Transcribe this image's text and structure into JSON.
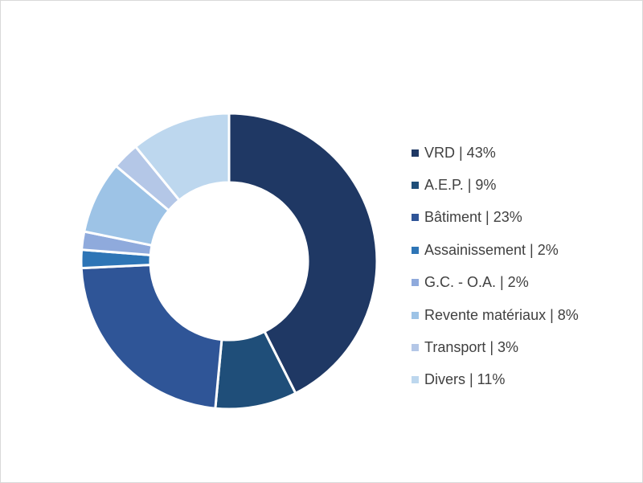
{
  "chart_data": {
    "type": "pie",
    "donut": true,
    "title": "",
    "legend_position": "right",
    "slices": [
      {
        "label": "VRD | 43%",
        "value": 43,
        "color": "#1f3864"
      },
      {
        "label": "A.E.P. | 9%",
        "value": 9,
        "color": "#1f4e79"
      },
      {
        "label": "Bâtiment | 23%",
        "value": 23,
        "color": "#2f5597"
      },
      {
        "label": "Assainissement | 2%",
        "value": 2,
        "color": "#2e75b6"
      },
      {
        "label": "G.C. - O.A. | 2%",
        "value": 2,
        "color": "#8faadc"
      },
      {
        "label": "Revente matériaux | 8%",
        "value": 8,
        "color": "#9dc3e6"
      },
      {
        "label": "Transport | 3%",
        "value": 3,
        "color": "#b4c7e7"
      },
      {
        "label": "Divers | 11%",
        "value": 11,
        "color": "#bdd7ee"
      }
    ]
  }
}
